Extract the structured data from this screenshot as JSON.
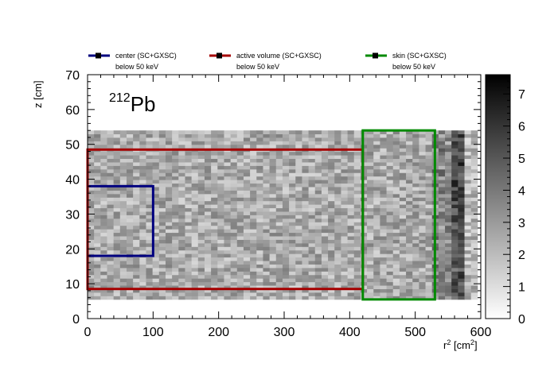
{
  "chart_data": {
    "type": "heatmap",
    "xlabel": "r",
    "xlabel_sup": "2",
    "xlabel_unit": " [cm",
    "xlabel_unit_sup": "2",
    "xlabel_close": "]",
    "ylabel": "z [cm]",
    "xlim": [
      0,
      600
    ],
    "ylim": [
      0,
      70
    ],
    "x_ticks": [
      "0",
      "100",
      "200",
      "300",
      "400",
      "500",
      "600"
    ],
    "y_ticks": [
      "0",
      "10",
      "20",
      "30",
      "40",
      "50",
      "60",
      "70"
    ],
    "zlim": [
      0,
      7.6
    ],
    "z_ticks": [
      "0",
      "1",
      "2",
      "3",
      "4",
      "5",
      "6",
      "7"
    ],
    "annotation": {
      "sup": "212",
      "text": "Pb"
    },
    "grid": false,
    "heatmap": {
      "x_range": [
        0,
        595
      ],
      "y_range": [
        5.5,
        54
      ],
      "n_x_bins": 60,
      "n_y_bins": 48,
      "description_of_pattern": "roughly uniform 1.5-4 counts across the volume, darker (5-7) near r^2 ~ 560-575"
    },
    "regions": [
      {
        "name": "center (SC+GXSC)",
        "label_line2": "below 50 keV",
        "color": "#00007f",
        "r2": [
          0,
          100
        ],
        "z": [
          18,
          38
        ]
      },
      {
        "name": "active volume (SC+GXSC)",
        "label_line2": "below 50 keV",
        "color": "#a50000",
        "r2": [
          0,
          420
        ],
        "z": [
          8.5,
          48.5
        ]
      },
      {
        "name": "skin (SC+GXSC)",
        "label_line2": "below 50 keV",
        "color": "#008a00",
        "r2": [
          420,
          530
        ],
        "z": [
          5.5,
          54
        ]
      }
    ]
  }
}
